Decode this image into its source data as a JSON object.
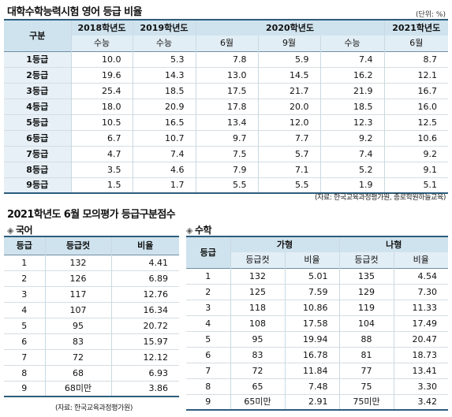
{
  "main": {
    "title": "대학수학능력시험 영어 등급 비율",
    "unit": "(단위: %)",
    "header": {
      "corner": "구분",
      "groups": [
        "2018학년도",
        "2019학년도",
        "2020학년도",
        "2021학년도"
      ],
      "subs": [
        "수능",
        "수능",
        "6월",
        "9월",
        "수능",
        "6월"
      ]
    },
    "rows": [
      {
        "label": "1등급",
        "v": [
          "10.0",
          "5.3",
          "7.8",
          "5.9",
          "7.4",
          "8.7"
        ]
      },
      {
        "label": "2등급",
        "v": [
          "19.6",
          "14.3",
          "13.0",
          "14.5",
          "16.2",
          "12.1"
        ]
      },
      {
        "label": "3등급",
        "v": [
          "25.4",
          "18.5",
          "17.5",
          "21.7",
          "21.9",
          "16.7"
        ]
      },
      {
        "label": "4등급",
        "v": [
          "18.0",
          "20.9",
          "17.8",
          "20.0",
          "18.5",
          "16.0"
        ]
      },
      {
        "label": "5등급",
        "v": [
          "10.5",
          "16.5",
          "13.4",
          "12.0",
          "12.3",
          "12.5"
        ]
      },
      {
        "label": "6등급",
        "v": [
          "6.7",
          "10.7",
          "9.7",
          "7.7",
          "9.2",
          "10.6"
        ]
      },
      {
        "label": "7등급",
        "v": [
          "4.7",
          "7.4",
          "7.5",
          "5.7",
          "7.4",
          "9.2"
        ]
      },
      {
        "label": "8등급",
        "v": [
          "3.5",
          "4.6",
          "7.9",
          "7.1",
          "5.2",
          "9.1"
        ]
      },
      {
        "label": "9등급",
        "v": [
          "1.5",
          "1.7",
          "5.5",
          "5.5",
          "1.9",
          "5.1"
        ]
      }
    ],
    "source": "(자료: 한국교육과정평가원, 종로학원하늘교육)"
  },
  "section2_title": "2021학년도 6월 모의평가 등급구분점수",
  "korean": {
    "title": "국어",
    "header": [
      "등급",
      "등급컷",
      "비율"
    ],
    "rows": [
      [
        "1",
        "132",
        "4.41"
      ],
      [
        "2",
        "126",
        "6.89"
      ],
      [
        "3",
        "117",
        "12.76"
      ],
      [
        "4",
        "107",
        "16.34"
      ],
      [
        "5",
        "95",
        "20.72"
      ],
      [
        "6",
        "83",
        "15.97"
      ],
      [
        "7",
        "72",
        "12.12"
      ],
      [
        "8",
        "68",
        "6.93"
      ],
      [
        "9",
        "68미만",
        "3.86"
      ]
    ],
    "source": "(자료: 한국교육과정평가원)"
  },
  "math": {
    "title": "수학",
    "corner": "등급",
    "groups": [
      "가형",
      "나형"
    ],
    "subs": [
      "등급컷",
      "비율",
      "등급컷",
      "비율"
    ],
    "rows": [
      [
        "1",
        "132",
        "5.01",
        "135",
        "4.54"
      ],
      [
        "2",
        "125",
        "7.59",
        "129",
        "7.30"
      ],
      [
        "3",
        "118",
        "10.86",
        "119",
        "11.33"
      ],
      [
        "4",
        "108",
        "17.58",
        "104",
        "17.49"
      ],
      [
        "5",
        "95",
        "19.94",
        "88",
        "20.47"
      ],
      [
        "6",
        "83",
        "16.78",
        "81",
        "18.73"
      ],
      [
        "7",
        "72",
        "11.84",
        "77",
        "13.41"
      ],
      [
        "8",
        "65",
        "7.48",
        "75",
        "3.30"
      ],
      [
        "9",
        "65미만",
        "2.91",
        "75미만",
        "3.42"
      ]
    ]
  },
  "icons": {
    "diamond": "◈"
  }
}
